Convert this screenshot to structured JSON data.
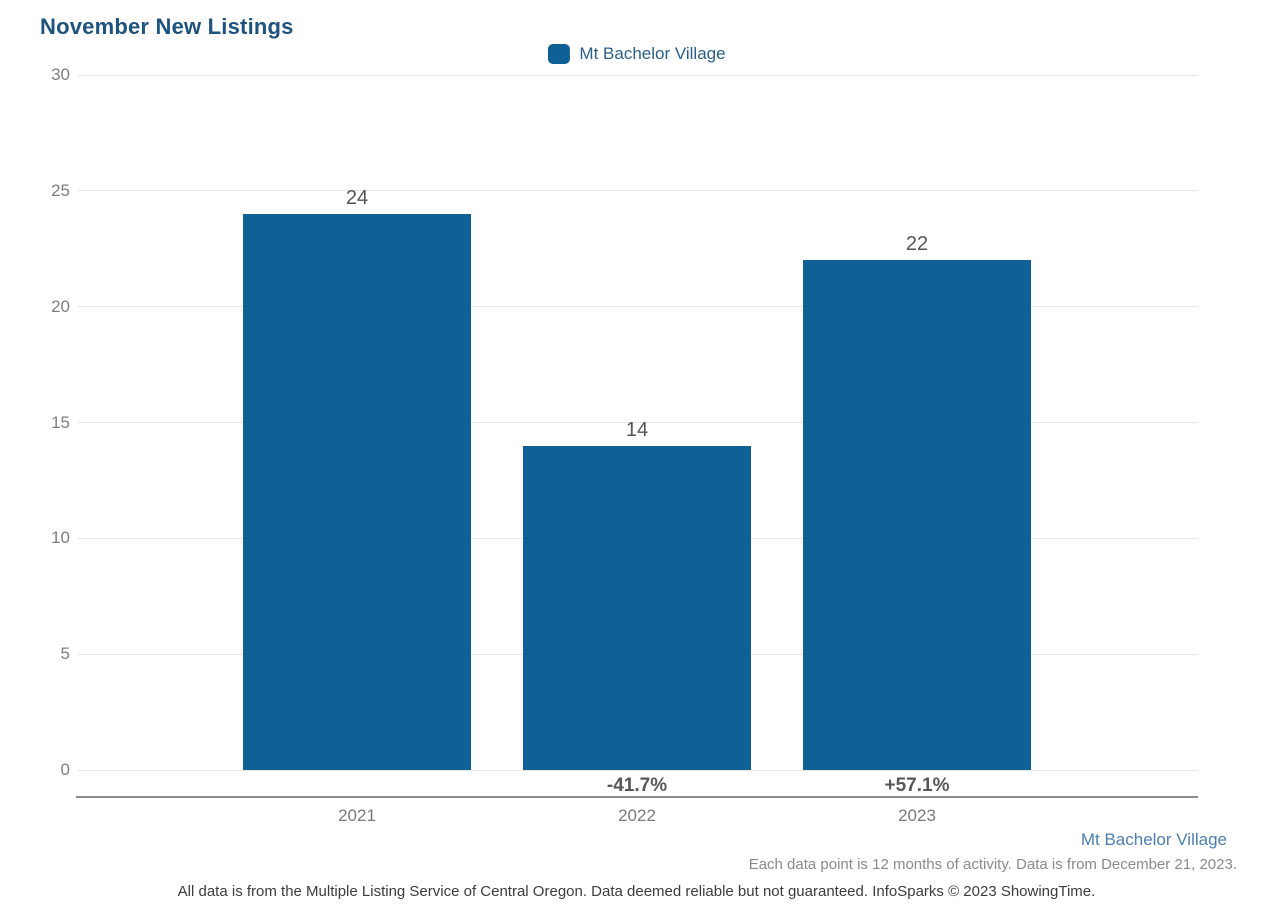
{
  "title": "November New Listings",
  "legend": {
    "label": "Mt Bachelor Village"
  },
  "chart_data": {
    "type": "bar",
    "title": "November New Listings",
    "categories": [
      "2021",
      "2022",
      "2023"
    ],
    "values": [
      24,
      14,
      22
    ],
    "bar_value_labels": [
      "24",
      "14",
      "22"
    ],
    "pct_change_labels": [
      "",
      "-41.7%",
      "+57.1%"
    ],
    "series": [
      {
        "name": "Mt Bachelor Village",
        "values": [
          24,
          14,
          22
        ]
      }
    ],
    "xlabel": "",
    "ylabel": "",
    "ylim": [
      0,
      30
    ],
    "yticks": [
      0,
      5,
      10,
      15,
      20,
      25,
      30
    ],
    "grid": "horizontal",
    "legend_position": "top-center"
  },
  "colors": {
    "bar": "#0f6195",
    "title_text": "#1e5380",
    "legend_text": "#2a5f8a",
    "tick_text": "#7f7f7f",
    "value_label_text": "#555555",
    "pct_label_text": "#575757",
    "gridline": "#e7e7e7",
    "axis_line": "#8c8c8c",
    "footer_series_text": "#4d7fb2",
    "footer_note_text": "#8a8a8a",
    "disclaimer_text": "#3c3c3c"
  },
  "footer": {
    "series_label": "Mt Bachelor Village",
    "note_right": "Each data point is 12 months of activity. Data is from December 21, 2023.",
    "note_bottom": "All data is from the Multiple Listing Service of Central Oregon. Data deemed reliable but not guaranteed. InfoSparks © 2023 ShowingTime."
  }
}
